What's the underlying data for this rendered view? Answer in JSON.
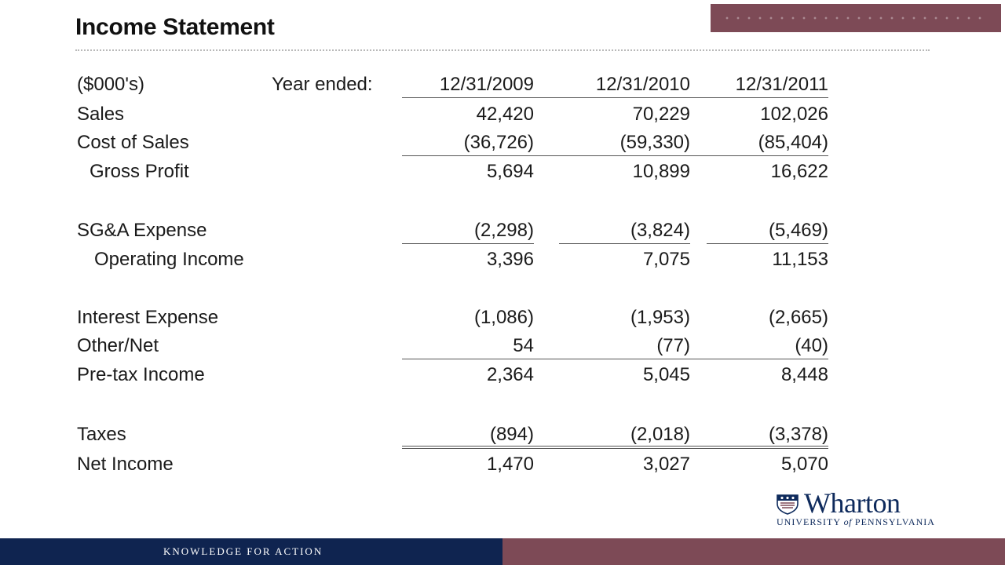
{
  "slide": {
    "title": "Income Statement",
    "footer_tagline": "KNOWLEDGE FOR ACTION",
    "colors": {
      "navy": "#0f2450",
      "maroon": "#7d4a56"
    }
  },
  "logo": {
    "wordmark": "Wharton",
    "subtitle_pre": "UNIVERSITY ",
    "subtitle_of": "of",
    "subtitle_post": " PENNSYLVANIA",
    "icon": "penn-shield-icon"
  },
  "table": {
    "units_label": "($000's)",
    "year_ended_label": "Year ended:",
    "columns": [
      "12/31/2009",
      "12/31/2010",
      "12/31/2011"
    ],
    "rows": [
      {
        "label": "Sales",
        "values": [
          "42,420",
          "70,229",
          "102,026"
        ]
      },
      {
        "label": "Cost of Sales",
        "values": [
          "(36,726)",
          "(59,330)",
          "(85,404)"
        ]
      },
      {
        "label": "Gross Profit",
        "values": [
          "5,694",
          "10,899",
          "16,622"
        ]
      },
      {
        "label": "SG&A Expense",
        "values": [
          "(2,298)",
          "(3,824)",
          "(5,469)"
        ]
      },
      {
        "label": "Operating Income",
        "values": [
          "3,396",
          "7,075",
          "11,153"
        ]
      },
      {
        "label": "Interest Expense",
        "values": [
          "(1,086)",
          "(1,953)",
          "(2,665)"
        ]
      },
      {
        "label": "Other/Net",
        "values": [
          "54",
          "(77)",
          "(40)"
        ]
      },
      {
        "label": "Pre-tax Income",
        "values": [
          "2,364",
          "5,045",
          "8,448"
        ]
      },
      {
        "label": "Taxes",
        "values": [
          "(894)",
          "(2,018)",
          "(3,378)"
        ]
      },
      {
        "label": "Net Income",
        "values": [
          "1,470",
          "3,027",
          "5,070"
        ]
      }
    ]
  }
}
